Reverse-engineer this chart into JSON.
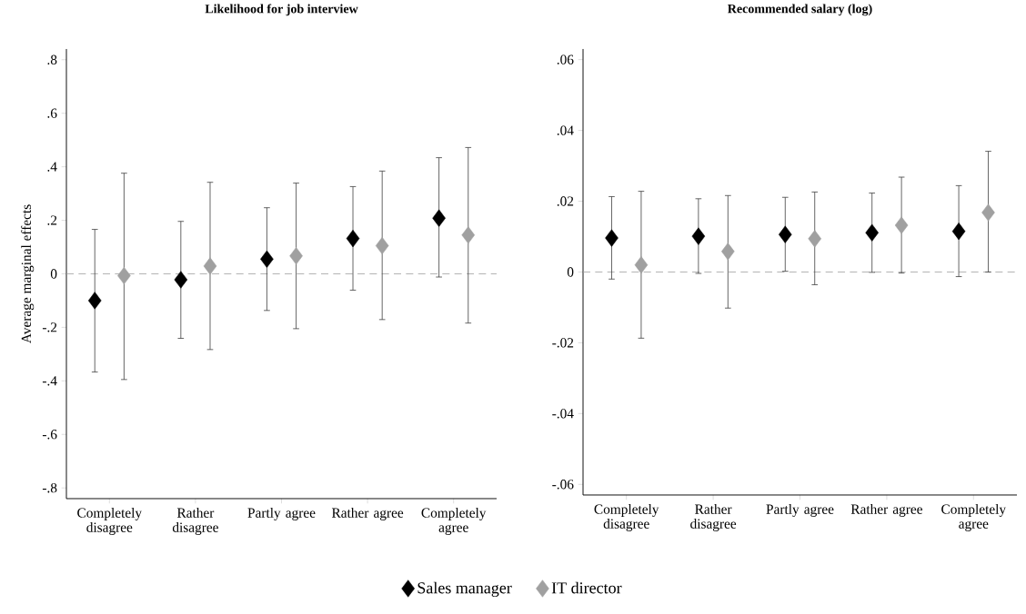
{
  "chart_data": [
    {
      "type": "scatter",
      "title": "Likelihood for job interview",
      "ylabel": "Average marginal effects",
      "categories": [
        "Completely disagree",
        "Rather disagree",
        "Partly agree",
        "Rather agree",
        "Completely agree"
      ],
      "ylim": [
        -0.84,
        0.84
      ],
      "yticks": [
        {
          "value": -0.8,
          "label": "-.8"
        },
        {
          "value": -0.6,
          "label": "-.6"
        },
        {
          "value": -0.4,
          "label": "-.4"
        },
        {
          "value": -0.2,
          "label": "-.2"
        },
        0,
        {
          "value": 0.2,
          "label": ".2"
        },
        {
          "value": 0.4,
          "label": ".4"
        },
        {
          "value": 0.6,
          "label": ".6"
        },
        {
          "value": 0.8,
          "label": ".8"
        }
      ],
      "marker": "diamond",
      "legend": "bottom",
      "ref_lines": [
        {
          "axis": "y",
          "value": 0,
          "color": "#a0a0a0",
          "line_style": "dashed"
        }
      ],
      "series": [
        {
          "name": "Sales manager",
          "color": "#000000",
          "values": [
            -0.1,
            -0.022,
            0.055,
            0.132,
            0.208
          ],
          "errors": [
            [
              -0.367,
              0.166
            ],
            [
              -0.241,
              0.196
            ],
            [
              -0.137,
              0.247
            ],
            [
              -0.061,
              0.326
            ],
            [
              -0.012,
              0.434
            ]
          ]
        },
        {
          "name": "IT director",
          "color": "#a0a0a0",
          "values": [
            -0.007,
            0.029,
            0.067,
            0.105,
            0.145
          ],
          "errors": [
            [
              -0.395,
              0.376
            ],
            [
              -0.283,
              0.342
            ],
            [
              -0.205,
              0.339
            ],
            [
              -0.171,
              0.384
            ],
            [
              -0.184,
              0.472
            ]
          ]
        }
      ]
    },
    {
      "type": "scatter",
      "title": "Recommended salary (log)",
      "categories": [
        "Completely disagree",
        "Rather disagree",
        "Partly agree",
        "Rather agree",
        "Completely agree"
      ],
      "ylim": [
        -0.063,
        0.063
      ],
      "yticks": [
        {
          "value": -0.06,
          "label": "-.06"
        },
        {
          "value": -0.04,
          "label": "-.04"
        },
        {
          "value": -0.02,
          "label": "-.02"
        },
        0,
        {
          "value": 0.02,
          "label": ".02"
        },
        {
          "value": 0.04,
          "label": ".04"
        },
        {
          "value": 0.06,
          "label": ".06"
        }
      ],
      "marker": "diamond",
      "ref_lines": [
        {
          "axis": "y",
          "value": 0,
          "color": "#a0a0a0",
          "line_style": "dashed"
        }
      ],
      "series": [
        {
          "color": "#000000",
          "values": [
            0.0096,
            0.0101,
            0.0106,
            0.0111,
            0.0115
          ],
          "errors": [
            [
              -0.002,
              0.0213
            ],
            [
              -0.0004,
              0.0207
            ],
            [
              0.0002,
              0.0211
            ],
            [
              -0.0001,
              0.0223
            ],
            [
              -0.0013,
              0.0244
            ]
          ]
        },
        {
          "color": "#a0a0a0",
          "values": [
            0.002,
            0.0058,
            0.0094,
            0.0132,
            0.0168
          ],
          "errors": [
            [
              -0.0187,
              0.0228
            ],
            [
              -0.0102,
              0.0216
            ],
            [
              -0.0036,
              0.0226
            ],
            [
              -0.0003,
              0.0268
            ],
            [
              0.0,
              0.0341
            ]
          ]
        }
      ]
    }
  ]
}
